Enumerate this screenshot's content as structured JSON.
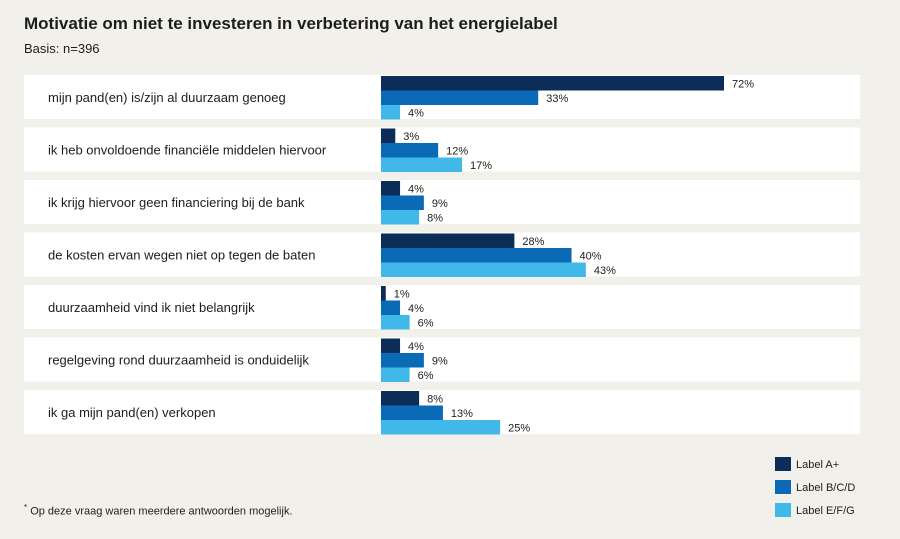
{
  "header": {
    "title": "Motivatie om niet te investeren in verbetering van het energielabel",
    "subtitle": "Basis: n=396"
  },
  "footnote": {
    "marker": "*",
    "text": "Op deze vraag waren meerdere antwoorden mogelijk."
  },
  "chart_data": {
    "type": "bar",
    "orientation": "horizontal",
    "title": "Motivatie om niet te investeren in verbetering van het energielabel",
    "xlim": [
      0,
      100
    ],
    "grid": false,
    "legend_position": "bottom-right",
    "categories": [
      "mijn pand(en) is/zijn al duurzaam genoeg",
      "ik heb onvoldoende financiële middelen hiervoor",
      "ik krijg hiervoor geen financiering bij de bank",
      "de kosten ervan wegen niet op tegen de baten",
      "duurzaamheid vind ik niet belangrijk",
      "regelgeving rond duurzaamheid is onduidelijk",
      "ik ga mijn pand(en) verkopen"
    ],
    "series": [
      {
        "name": "Label A+",
        "color": "#0c2d57",
        "values": [
          72,
          3,
          4,
          28,
          1,
          4,
          8
        ]
      },
      {
        "name": "Label B/C/D",
        "color": "#0b6ab5",
        "values": [
          33,
          12,
          9,
          40,
          4,
          9,
          13
        ]
      },
      {
        "name": "Label E/F/G",
        "color": "#41b8ea",
        "values": [
          4,
          17,
          8,
          43,
          6,
          6,
          25
        ]
      }
    ],
    "value_suffix": "%"
  }
}
